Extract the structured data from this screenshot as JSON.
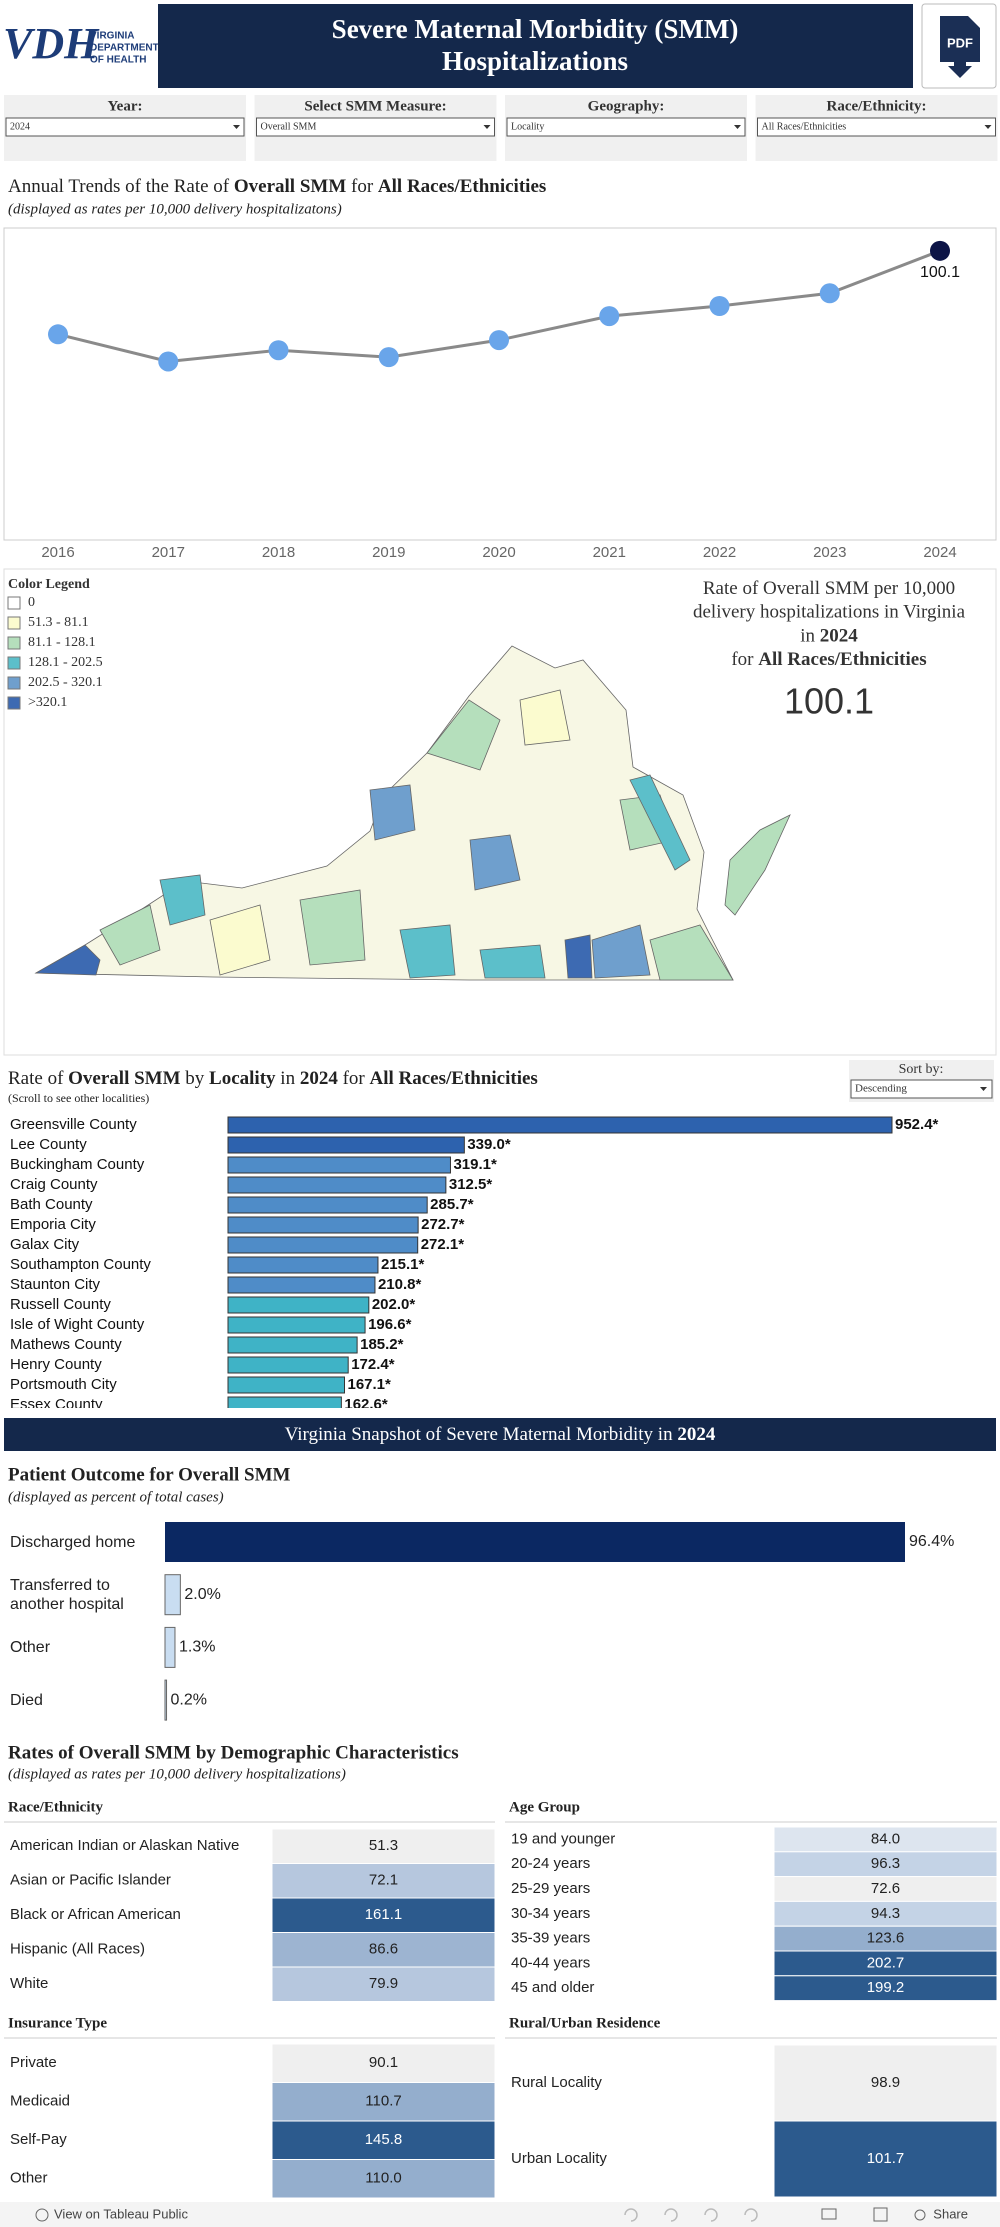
{
  "header": {
    "logo_text": "VDH",
    "logo_subtext": [
      "VIRGINIA",
      "DEPARTMENT",
      "OF HEALTH"
    ],
    "title_lines": [
      "Severe Maternal Morbidity (SMM)",
      "Hospitalizations"
    ],
    "pdf_label": "PDF"
  },
  "filters": [
    {
      "label": "Year:",
      "value": "2024"
    },
    {
      "label": "Select SMM Measure:",
      "value": "Overall SMM"
    },
    {
      "label": "Geography:",
      "value": "Locality"
    },
    {
      "label": "Race/Ethnicity:",
      "value": "All Races/Ethnicities"
    }
  ],
  "chart_data": [
    {
      "type": "line",
      "title": [
        "Annual Trends of the Rate of ",
        "Overall SMM",
        " for ",
        "All Races/Ethnicities"
      ],
      "subtitle": "(displayed as rates per 10,000 delivery hospitalizatons)",
      "categories": [
        "2016",
        "2017",
        "2018",
        "2019",
        "2020",
        "2021",
        "2022",
        "2023",
        "2024"
      ],
      "values": [
        71.2,
        61.8,
        65.7,
        63.3,
        69.2,
        77.5,
        81.0,
        85.4,
        100.1
      ],
      "color": "#69a5ea",
      "line_color": "#8a8a8a",
      "highlight_color": "#0c1446",
      "ylim": [
        0,
        108
      ]
    },
    {
      "type": "bar",
      "orientation": "horizontal",
      "title": [
        "Rate of ",
        "Overall SMM",
        " by ",
        "Locality",
        " in ",
        "2024",
        " for ",
        "All Races/Ethnicities"
      ],
      "subtitle": "(Scroll to see other localities)",
      "sort_label": "Sort by:",
      "sort_value": "Descending",
      "categories": [
        "Greensville County",
        "Lee County",
        "Buckingham County",
        "Craig County",
        "Bath County",
        "Emporia City",
        "Galax City",
        "Southampton County",
        "Staunton City",
        "Russell County",
        "Isle of Wight County",
        "Mathews County",
        "Henry County",
        "Portsmouth City",
        "Essex County"
      ],
      "values": [
        952.4,
        339.0,
        319.1,
        312.5,
        285.7,
        272.7,
        272.1,
        215.1,
        210.8,
        202.0,
        196.6,
        185.2,
        172.4,
        167.1,
        162.6
      ],
      "value_labels": [
        "952.4*",
        "339.0*",
        "319.1*",
        "312.5*",
        "285.7*",
        "272.7*",
        "272.1*",
        "215.1*",
        "210.8*",
        "202.0*",
        "196.6*",
        "185.2*",
        "172.4*",
        "167.1*",
        "162.6*"
      ],
      "colors": [
        "#2d62ae",
        "#2d62ae",
        "#4f8cc8",
        "#4f8cc8",
        "#4f8cc8",
        "#4f8cc8",
        "#4f8cc8",
        "#4f8cc8",
        "#4f8cc8",
        "#3fb3c6",
        "#3fb3c6",
        "#3fb3c6",
        "#3fb3c6",
        "#3fb3c6",
        "#3fb3c6"
      ],
      "xlim": [
        0,
        952.4
      ]
    },
    {
      "type": "bar",
      "orientation": "horizontal",
      "title": "Patient Outcome for Overall SMM",
      "subtitle": "(displayed as percent of total cases)",
      "categories": [
        "Discharged home",
        "Transferred to another hospital",
        "Other",
        "Died"
      ],
      "values": [
        96.4,
        2.0,
        1.3,
        0.2
      ],
      "value_labels": [
        "96.4%",
        "2.0%",
        "1.3%",
        "0.2%"
      ],
      "colors": [
        "#0b2862",
        "#c9ddf1",
        "#c9ddf1",
        "#c9ddf1"
      ],
      "xlim": [
        0,
        96.4
      ]
    }
  ],
  "map": {
    "legend_title": "Color Legend",
    "legend_items": [
      "0",
      "51.3 - 81.1",
      "81.1 - 128.1",
      "128.1 - 202.5",
      "202.5 - 320.1",
      ">320.1"
    ],
    "legend_colors": [
      "#ffffff",
      "#fbfbcf",
      "#b5dfbc",
      "#5cbfca",
      "#6f9fcd",
      "#3d6ab2"
    ],
    "info_lines": [
      [
        "Rate of Overall SMM per 10,000"
      ],
      [
        "delivery hospitalizations in Virginia"
      ],
      [
        "in ",
        "2024"
      ],
      [
        "for ",
        "All Races/Ethnicities"
      ]
    ],
    "info_value": "100.1"
  },
  "snapshot_banner": [
    "Virginia Snapshot of Severe Maternal Morbidity in ",
    "2024"
  ],
  "demographics": {
    "title": "Rates of Overall SMM by Demographic Characteristics",
    "subtitle": "(displayed as rates per 10,000 delivery hospitalizations)",
    "tables": [
      {
        "title": "Race/Ethnicity",
        "rows": [
          [
            "American Indian or Alaskan Native",
            "51.3"
          ],
          [
            "Asian or Pacific Islander",
            "72.1"
          ],
          [
            "Black or African American",
            "161.1"
          ],
          [
            "Hispanic (All Races)",
            "86.6"
          ],
          [
            "White",
            "79.9"
          ]
        ],
        "colors": [
          "#efefef",
          "#b6c7de",
          "#2c5a8d",
          "#9db4d1",
          "#b6c7de"
        ]
      },
      {
        "title": "Age Group",
        "rows": [
          [
            "19 and younger",
            "84.0"
          ],
          [
            "20-24 years",
            "96.3"
          ],
          [
            "25-29 years",
            "72.6"
          ],
          [
            "30-34 years",
            "94.3"
          ],
          [
            "35-39 years",
            "123.6"
          ],
          [
            "40-44 years",
            "202.7"
          ],
          [
            "45 and older",
            "199.2"
          ]
        ],
        "colors": [
          "#dde5ef",
          "#c4d3e6",
          "#efefef",
          "#c4d3e6",
          "#94aecd",
          "#2c5a8d",
          "#2c5a8d"
        ]
      },
      {
        "title": "Insurance Type",
        "rows": [
          [
            "Private",
            "90.1"
          ],
          [
            "Medicaid",
            "110.7"
          ],
          [
            "Self-Pay",
            "145.8"
          ],
          [
            "Other",
            "110.0"
          ]
        ],
        "colors": [
          "#efefef",
          "#94aecd",
          "#2c5a8d",
          "#94aecd"
        ]
      },
      {
        "title": "Rural/Urban Residence",
        "rows": [
          [
            "Rural Locality",
            "98.9"
          ],
          [
            "Urban Locality",
            "101.7"
          ]
        ],
        "colors": [
          "#efefef",
          "#2c5a8d"
        ]
      }
    ]
  },
  "footer": {
    "tableau": "View on Tableau Public",
    "share": "Share"
  }
}
